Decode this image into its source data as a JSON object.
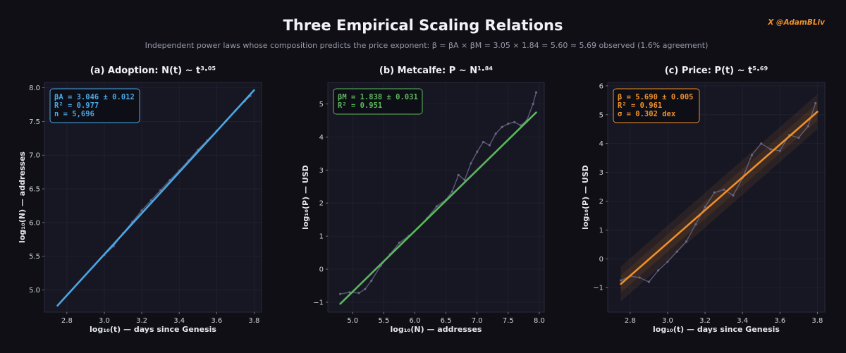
{
  "header": {
    "title": "Three Empirical Scaling Relations",
    "subtitle": "Independent power laws whose composition predicts the price exponent:  β = βA × βM = 3.05 × 1.84 = 5.60  ≈  5.69 observed  (1.6% agreement)",
    "handle": "X  @AdamBLiv"
  },
  "colors": {
    "background": "#0f0f15",
    "panel": "#171724",
    "data_points": "#6a6a8c",
    "adoption": "#4aa8e6",
    "metcalfe": "#5cb85c",
    "price": "#f0902a"
  },
  "chart_data": [
    {
      "id": "adoption",
      "type": "scatter",
      "title": "(a)  Adoption:  N(t) ~ t³·⁰⁵",
      "xlabel": "log₁₀(t)  —  days since Genesis",
      "ylabel": "log₁₀(N)  —  addresses",
      "xlim": [
        2.68,
        3.84
      ],
      "ylim": [
        4.67,
        8.08
      ],
      "xticks": [
        2.8,
        3.0,
        3.2,
        3.4,
        3.6,
        3.8
      ],
      "xtick_labels": [
        "2.8",
        "3.0",
        "3.2",
        "3.4",
        "3.6",
        "3.8"
      ],
      "yticks": [
        5.0,
        5.5,
        6.0,
        6.5,
        7.0,
        7.5,
        8.0
      ],
      "ytick_labels": [
        "5.0",
        "5.5",
        "6.0",
        "6.5",
        "7.0",
        "7.5",
        "8.0"
      ],
      "fit": {
        "slope": 3.046,
        "intercept": -3.61,
        "x_range": [
          2.75,
          3.8
        ]
      },
      "band": null,
      "points": {
        "x": [
          3.0,
          3.05,
          3.1,
          3.15,
          3.2,
          3.25,
          3.3,
          3.35,
          3.4,
          3.45,
          3.5,
          3.55,
          3.6,
          3.65,
          3.7,
          3.75,
          3.78
        ],
        "y": [
          5.52,
          5.65,
          5.84,
          6.01,
          6.18,
          6.33,
          6.48,
          6.63,
          6.77,
          6.92,
          7.08,
          7.22,
          7.36,
          7.51,
          7.66,
          7.8,
          7.88
        ]
      },
      "stats_lines": [
        "βA = 3.046 ± 0.012",
        "R² = 0.977",
        "n = 5,696"
      ]
    },
    {
      "id": "metcalfe",
      "type": "scatter",
      "title": "(b)  Metcalfe:  P ~ N¹·⁸⁴",
      "xlabel": "log₁₀(N)  —  addresses",
      "ylabel": "log₁₀(P)  —  USD",
      "xlim": [
        4.6,
        8.08
      ],
      "ylim": [
        -1.3,
        5.65
      ],
      "xticks": [
        5.0,
        5.5,
        6.0,
        6.5,
        7.0,
        7.5,
        8.0
      ],
      "xtick_labels": [
        "5.0",
        "5.5",
        "6.0",
        "6.5",
        "7.0",
        "7.5",
        "8.0"
      ],
      "yticks": [
        -1,
        0,
        1,
        2,
        3,
        4,
        5
      ],
      "ytick_labels": [
        "−1",
        "0",
        "1",
        "2",
        "3",
        "4",
        "5"
      ],
      "fit": {
        "slope": 1.838,
        "intercept": -9.87,
        "x_range": [
          4.8,
          7.95
        ]
      },
      "band": null,
      "points": {
        "x": [
          4.8,
          4.95,
          5.1,
          5.2,
          5.3,
          5.45,
          5.6,
          5.75,
          5.9,
          6.05,
          6.2,
          6.35,
          6.5,
          6.6,
          6.7,
          6.8,
          6.9,
          7.0,
          7.1,
          7.2,
          7.3,
          7.4,
          7.5,
          7.6,
          7.7,
          7.8,
          7.9,
          7.95
        ],
        "y": [
          -0.75,
          -0.7,
          -0.72,
          -0.6,
          -0.35,
          0.1,
          0.45,
          0.8,
          1.0,
          1.25,
          1.55,
          1.9,
          2.1,
          2.35,
          2.85,
          2.7,
          3.2,
          3.55,
          3.85,
          3.75,
          4.1,
          4.3,
          4.4,
          4.45,
          4.35,
          4.5,
          5.0,
          5.35
        ]
      },
      "stats_lines": [
        "βM = 1.838 ± 0.031",
        "R² = 0.951"
      ]
    },
    {
      "id": "price",
      "type": "scatter",
      "title": "(c)  Price:  P(t) ~ t⁵·⁶⁹",
      "xlabel": "log₁₀(t)  —  days since Genesis",
      "ylabel": "log₁₀(P)  —  USD",
      "xlim": [
        2.68,
        3.84
      ],
      "ylim": [
        -1.85,
        6.12
      ],
      "xticks": [
        2.8,
        3.0,
        3.2,
        3.4,
        3.6,
        3.8
      ],
      "xtick_labels": [
        "2.8",
        "3.0",
        "3.2",
        "3.4",
        "3.6",
        "3.8"
      ],
      "yticks": [
        -1,
        0,
        1,
        2,
        3,
        4,
        5,
        6
      ],
      "ytick_labels": [
        "−1",
        "0",
        "1",
        "2",
        "3",
        "4",
        "5",
        "6"
      ],
      "fit": {
        "slope": 5.69,
        "intercept": -16.52,
        "x_range": [
          2.75,
          3.8
        ]
      },
      "band": {
        "sigma": 0.302
      },
      "points": {
        "x": [
          2.75,
          2.8,
          2.85,
          2.9,
          2.95,
          3.0,
          3.05,
          3.1,
          3.15,
          3.2,
          3.25,
          3.3,
          3.35,
          3.4,
          3.45,
          3.5,
          3.55,
          3.6,
          3.65,
          3.7,
          3.75,
          3.79
        ],
        "y": [
          -0.75,
          -0.6,
          -0.65,
          -0.8,
          -0.4,
          -0.1,
          0.25,
          0.6,
          1.2,
          1.8,
          2.3,
          2.4,
          2.2,
          2.8,
          3.6,
          4.0,
          3.8,
          3.75,
          4.3,
          4.2,
          4.6,
          5.4
        ]
      },
      "stats_lines": [
        "β = 5.690 ± 0.005",
        "R² = 0.961",
        "σ = 0.302 dex"
      ]
    }
  ]
}
